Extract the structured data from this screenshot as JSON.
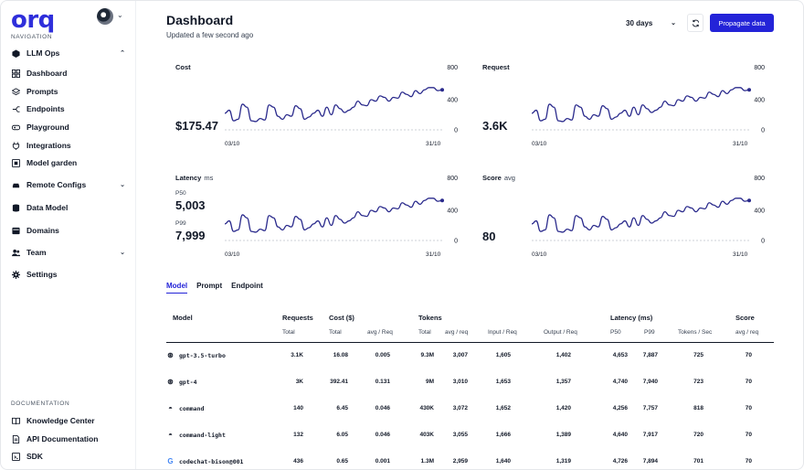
{
  "brand": {
    "logo_text": "orq"
  },
  "sidebar": {
    "navigation_label": "NAVIGATION",
    "groups": [
      {
        "label": "LLM Ops",
        "icon": "cube-icon",
        "expanded": true
      },
      {
        "label": "Remote Configs",
        "icon": "car-icon"
      },
      {
        "label": "Data Model",
        "icon": "database-icon"
      },
      {
        "label": "Domains",
        "icon": "domains-icon"
      },
      {
        "label": "Team",
        "icon": "team-icon"
      },
      {
        "label": "Settings",
        "icon": "gear-icon"
      }
    ],
    "llm_items": [
      {
        "label": "Dashboard",
        "icon": "grid-icon"
      },
      {
        "label": "Prompts",
        "icon": "layers-icon"
      },
      {
        "label": "Endpoints",
        "icon": "endpoints-icon"
      },
      {
        "label": "Playground",
        "icon": "gamepad-icon"
      },
      {
        "label": "Integrations",
        "icon": "plug-icon"
      },
      {
        "label": "Model garden",
        "icon": "box-icon"
      }
    ],
    "documentation_label": "DOCUMENTATION",
    "docs": [
      {
        "label": "Knowledge Center",
        "icon": "book-icon"
      },
      {
        "label": "API Documentation",
        "icon": "file-icon"
      },
      {
        "label": "SDK",
        "icon": "sdk-icon"
      }
    ]
  },
  "header": {
    "title": "Dashboard",
    "subtitle": "Updated a few second ago",
    "period": "30 days",
    "propagate_label": "Propagate data"
  },
  "cards": [
    {
      "label": "Cost",
      "unit": "",
      "value": "$175.47"
    },
    {
      "label": "Request",
      "unit": "",
      "value": "3.6K"
    },
    {
      "label": "Latency",
      "unit": "ms",
      "p50_label": "P50",
      "p50": "5,003",
      "p99_label": "P99",
      "p99": "7,999"
    },
    {
      "label": "Score",
      "unit": "avg",
      "value": "80"
    }
  ],
  "chart_data": [
    {
      "type": "line",
      "title": "Cost",
      "x_start": "03/10",
      "x_end": "31/10",
      "yticks": [
        "800",
        "400",
        "0"
      ],
      "ylim": [
        0,
        800
      ],
      "values": [
        220,
        260,
        120,
        140,
        340,
        300,
        120,
        110,
        150,
        130,
        330,
        300,
        180,
        140,
        200,
        180,
        320,
        280,
        140,
        170,
        220,
        260,
        180,
        300,
        200,
        330,
        280,
        230,
        260,
        300,
        380,
        330,
        320,
        400,
        380,
        450,
        430,
        380,
        430,
        420,
        500,
        470,
        440,
        520,
        480,
        530,
        560,
        560,
        520,
        530
      ]
    },
    {
      "type": "line",
      "title": "Request",
      "x_start": "03/10",
      "x_end": "31/10",
      "yticks": [
        "800",
        "400",
        "0"
      ],
      "ylim": [
        0,
        800
      ],
      "values": [
        220,
        260,
        120,
        140,
        340,
        300,
        120,
        110,
        150,
        130,
        330,
        300,
        180,
        140,
        200,
        180,
        320,
        280,
        140,
        170,
        220,
        260,
        180,
        300,
        200,
        330,
        280,
        230,
        260,
        300,
        380,
        330,
        320,
        400,
        380,
        450,
        430,
        380,
        430,
        420,
        500,
        470,
        440,
        520,
        480,
        530,
        560,
        560,
        520,
        530
      ]
    },
    {
      "type": "line",
      "title": "Latency",
      "x_start": "03/10",
      "x_end": "31/10",
      "yticks": [
        "800",
        "400",
        "0"
      ],
      "ylim": [
        0,
        800
      ],
      "values": [
        220,
        260,
        120,
        140,
        340,
        300,
        120,
        110,
        150,
        130,
        330,
        300,
        180,
        140,
        200,
        180,
        320,
        280,
        140,
        170,
        220,
        260,
        180,
        300,
        200,
        330,
        280,
        230,
        260,
        300,
        380,
        330,
        320,
        400,
        380,
        450,
        430,
        380,
        430,
        420,
        500,
        470,
        440,
        520,
        480,
        530,
        560,
        560,
        520,
        530
      ]
    },
    {
      "type": "line",
      "title": "Score",
      "x_start": "03/10",
      "x_end": "31/10",
      "yticks": [
        "800",
        "400",
        "0"
      ],
      "ylim": [
        0,
        800
      ],
      "values": [
        220,
        260,
        120,
        140,
        340,
        300,
        120,
        110,
        150,
        130,
        330,
        300,
        180,
        140,
        200,
        180,
        320,
        280,
        140,
        170,
        220,
        260,
        180,
        300,
        200,
        330,
        280,
        230,
        260,
        300,
        380,
        330,
        320,
        400,
        380,
        450,
        430,
        380,
        430,
        420,
        500,
        470,
        440,
        520,
        480,
        530,
        560,
        560,
        520,
        530
      ]
    }
  ],
  "tabs": [
    "Model",
    "Prompt",
    "Endpoint"
  ],
  "table": {
    "group_headers": {
      "model": "Model",
      "requests": "Requests",
      "cost": "Cost ($)",
      "tokens": "Tokens",
      "latency": "Latency (ms)",
      "score": "Score"
    },
    "sub_headers": {
      "req_total": "Total",
      "cost_total": "Total",
      "cost_avg": "avg / Req",
      "tok_total": "Total",
      "tok_avg": "avg / req",
      "tok_in": "Input / Req",
      "tok_out": "Output / Req",
      "p50": "P50",
      "p99": "P99",
      "tps": "Tokens / Sec",
      "score_avg": "avg / req"
    },
    "rows": [
      {
        "icon": "openai-icon",
        "model": "gpt-3.5-turbo",
        "requests": "3.1K",
        "cost_total": "16.08",
        "cost_avg": "0.005",
        "tokens_total": "9.3M",
        "tokens_avg": "3,007",
        "input": "1,605",
        "output": "1,402",
        "p50": "4,653",
        "p99": "7,887",
        "tps": "725",
        "score": "70"
      },
      {
        "icon": "openai-icon",
        "model": "gpt-4",
        "requests": "3K",
        "cost_total": "392.41",
        "cost_avg": "0.131",
        "tokens_total": "9M",
        "tokens_avg": "3,010",
        "input": "1,653",
        "output": "1,357",
        "p50": "4,740",
        "p99": "7,940",
        "tps": "723",
        "score": "70"
      },
      {
        "icon": "cohere-icon",
        "model": "command",
        "requests": "140",
        "cost_total": "6.45",
        "cost_avg": "0.046",
        "tokens_total": "430K",
        "tokens_avg": "3,072",
        "input": "1,652",
        "output": "1,420",
        "p50": "4,256",
        "p99": "7,757",
        "tps": "818",
        "score": "70"
      },
      {
        "icon": "cohere-icon",
        "model": "command-light",
        "requests": "132",
        "cost_total": "6.05",
        "cost_avg": "0.046",
        "tokens_total": "403K",
        "tokens_avg": "3,055",
        "input": "1,666",
        "output": "1,389",
        "p50": "4,640",
        "p99": "7,917",
        "tps": "720",
        "score": "70"
      },
      {
        "icon": "google-icon",
        "model": "codechat-bison@001",
        "requests": "436",
        "cost_total": "0.65",
        "cost_avg": "0.001",
        "tokens_total": "1.3M",
        "tokens_avg": "2,959",
        "input": "1,640",
        "output": "1,319",
        "p50": "4,726",
        "p99": "7,894",
        "tps": "701",
        "score": "70"
      }
    ]
  },
  "colors": {
    "accent": "#2323d8",
    "line": "#2a2a8c",
    "text": "#111827"
  }
}
